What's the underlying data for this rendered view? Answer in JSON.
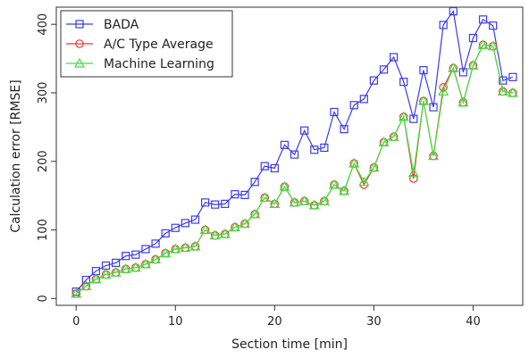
{
  "chart_data": {
    "type": "line",
    "xlabel": "Section time [min]",
    "ylabel": "Calculation error [RMSE]",
    "xlim": [
      -2,
      45
    ],
    "ylim": [
      -10,
      425
    ],
    "xticks": [
      0,
      10,
      20,
      30,
      40
    ],
    "yticks": [
      0,
      100,
      200,
      300,
      400
    ],
    "grid": false,
    "legend_position": "top-left",
    "x": [
      0,
      1,
      2,
      3,
      4,
      5,
      6,
      7,
      8,
      9,
      10,
      11,
      12,
      13,
      14,
      15,
      16,
      17,
      18,
      19,
      20,
      21,
      22,
      23,
      24,
      25,
      26,
      27,
      28,
      29,
      30,
      31,
      32,
      33,
      34,
      35,
      36,
      37,
      38,
      39,
      40,
      41,
      42,
      43,
      44
    ],
    "series": [
      {
        "name": "BADA",
        "color": "#3b3bf0",
        "marker": "square",
        "values": [
          10,
          27,
          40,
          48,
          52,
          62,
          64,
          72,
          80,
          95,
          103,
          110,
          115,
          140,
          137,
          138,
          152,
          151,
          170,
          193,
          190,
          224,
          210,
          245,
          217,
          220,
          272,
          247,
          282,
          291,
          318,
          334,
          352,
          316,
          262,
          333,
          279,
          399,
          419,
          330,
          380,
          407,
          398,
          318,
          323
        ]
      },
      {
        "name": "A/C Type Average",
        "color": "#ef3b3b",
        "marker": "circle",
        "values": [
          7,
          18,
          28,
          35,
          38,
          43,
          45,
          50,
          57,
          66,
          72,
          74,
          76,
          100,
          92,
          94,
          104,
          109,
          123,
          147,
          138,
          163,
          140,
          142,
          136,
          142,
          166,
          157,
          197,
          166,
          191,
          228,
          236,
          265,
          175,
          288,
          208,
          308,
          336,
          286,
          340,
          370,
          368,
          302,
          300
        ]
      },
      {
        "name": "Machine Learning",
        "color": "#3ee03e",
        "marker": "triangle",
        "values": [
          7,
          18,
          28,
          35,
          38,
          43,
          45,
          50,
          57,
          66,
          72,
          74,
          76,
          100,
          92,
          94,
          104,
          109,
          123,
          147,
          138,
          163,
          140,
          142,
          136,
          142,
          166,
          157,
          197,
          170,
          191,
          228,
          236,
          265,
          183,
          288,
          208,
          302,
          336,
          286,
          340,
          370,
          368,
          302,
          300
        ]
      }
    ]
  }
}
